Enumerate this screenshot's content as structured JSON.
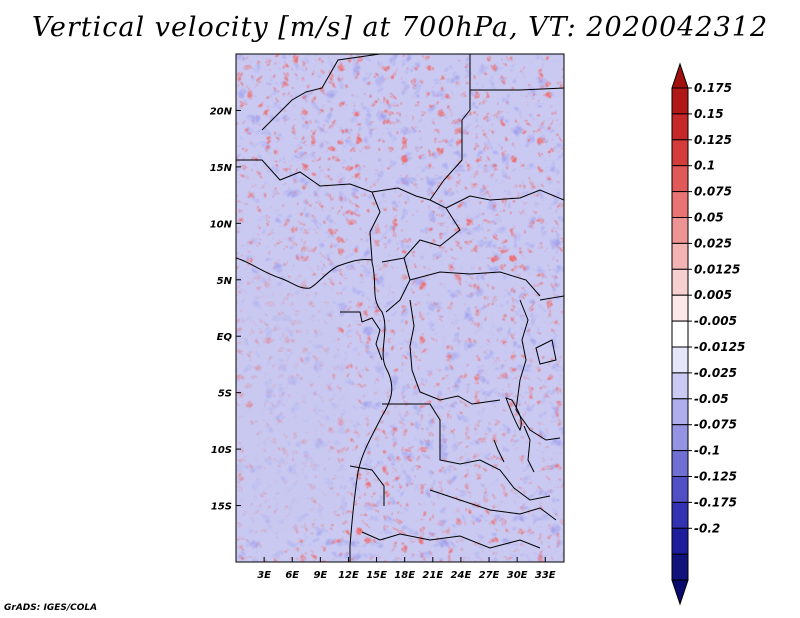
{
  "title": "Vertical velocity [m/s] at 700hPa, VT: 2020042312",
  "credit": "GrADS: IGES/COLA",
  "map": {
    "lat_labels": [
      "20N",
      "15N",
      "10N",
      "5N",
      "EQ",
      "5S",
      "10S",
      "15S"
    ],
    "lat_values": [
      20,
      15,
      10,
      5,
      0,
      -5,
      -10,
      -15
    ],
    "lon_labels": [
      "3E",
      "6E",
      "9E",
      "12E",
      "15E",
      "18E",
      "21E",
      "24E",
      "27E",
      "30E",
      "33E"
    ],
    "lon_values": [
      3,
      6,
      9,
      12,
      15,
      18,
      21,
      24,
      27,
      30,
      33
    ],
    "lon_range": [
      0,
      35
    ],
    "lat_range": [
      -20,
      25
    ]
  },
  "colorbar": {
    "labels": [
      "0.175",
      "0.15",
      "0.125",
      "0.1",
      "0.075",
      "0.05",
      "0.025",
      "0.0125",
      "0.005",
      "-0.005",
      "-0.0125",
      "-0.025",
      "-0.05",
      "-0.075",
      "-0.1",
      "-0.125",
      "-0.175",
      "-0.2"
    ],
    "colors": [
      "#b01818",
      "#c52828",
      "#d43c3c",
      "#e05858",
      "#e87474",
      "#ef9494",
      "#f5b4b4",
      "#f9d0d0",
      "#fce8e8",
      "#ffffff",
      "#e6e6fb",
      "#cacaf4",
      "#aeaeec",
      "#9494e2",
      "#7070d4",
      "#5050c4",
      "#3232b2",
      "#1e1e9c",
      "#12127c"
    ],
    "top_color": "#a01010",
    "bottom_color": "#0a0a6e"
  }
}
